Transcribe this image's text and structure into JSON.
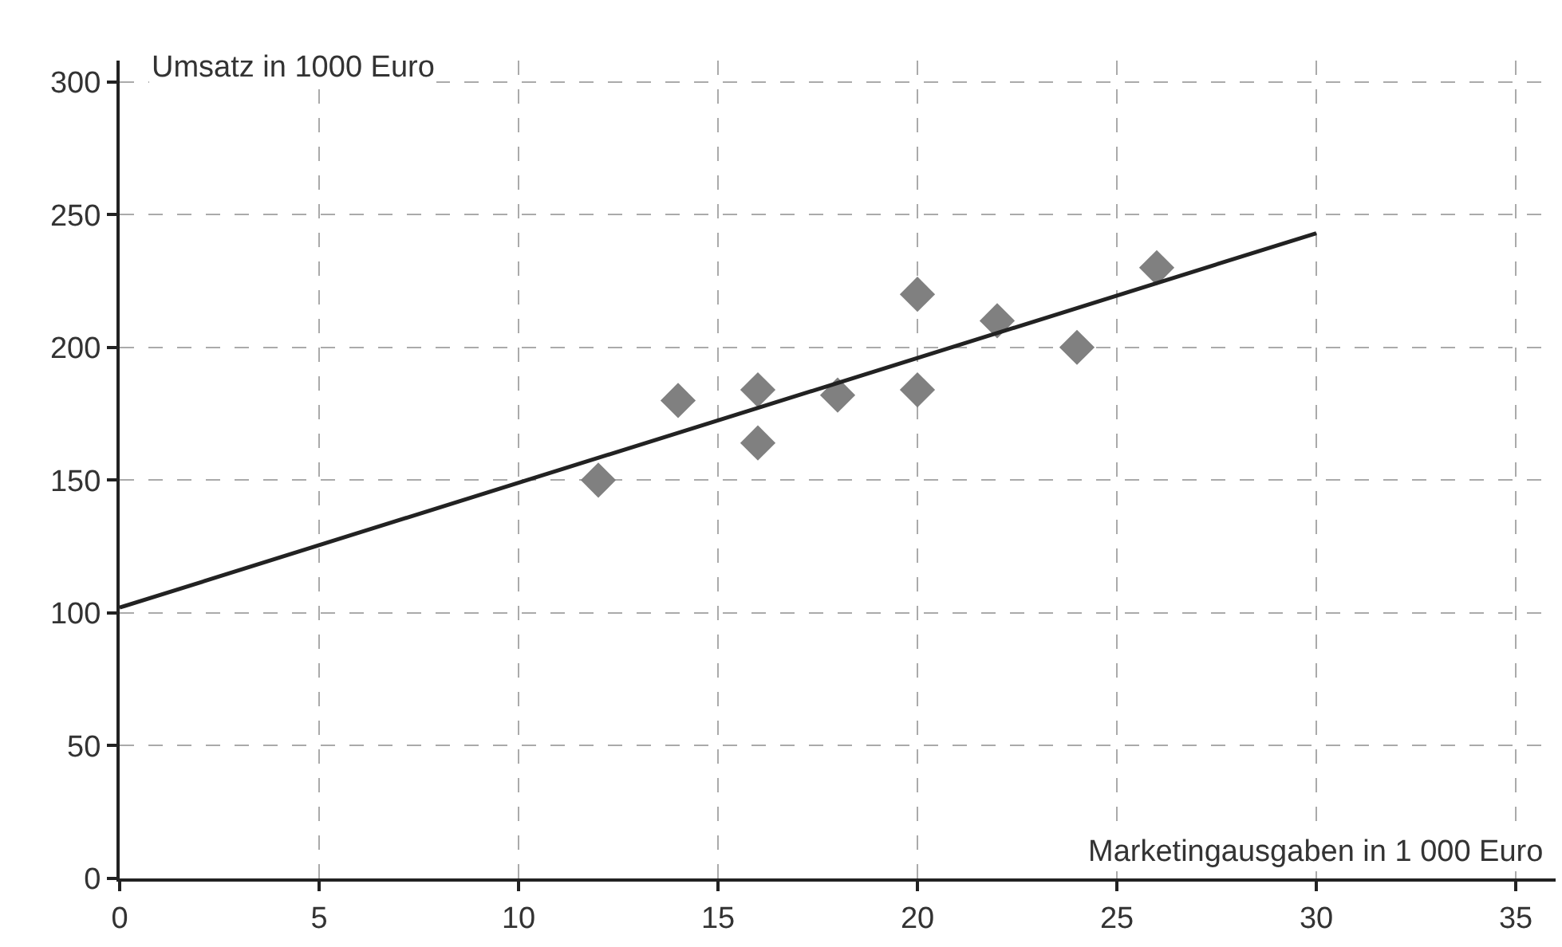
{
  "chart_data": {
    "type": "scatter",
    "xlabel": "Marketingausgaben in 1 000 Euro",
    "ylabel": "Umsatz in 1000 Euro",
    "x": [
      12,
      14,
      16,
      16,
      18,
      20,
      20,
      22,
      24,
      26
    ],
    "series": [
      {
        "color": "#808080",
        "marker": "diamond",
        "values": [
          150,
          180,
          184,
          164,
          182,
          220,
          184,
          210,
          200,
          230
        ]
      },
      {
        "type": "line",
        "color": "#222222",
        "x": [
          0,
          30
        ],
        "values": [
          102,
          243
        ],
        "marker": "none",
        "line_style": "solid"
      }
    ],
    "xlim": [
      0,
      36
    ],
    "xticks": [
      0,
      5,
      10,
      15,
      20,
      25,
      30,
      35
    ],
    "ylim": [
      0,
      308
    ],
    "yticks": [
      0,
      50,
      100,
      150,
      200,
      250,
      300
    ],
    "grid": true,
    "legend": false
  }
}
